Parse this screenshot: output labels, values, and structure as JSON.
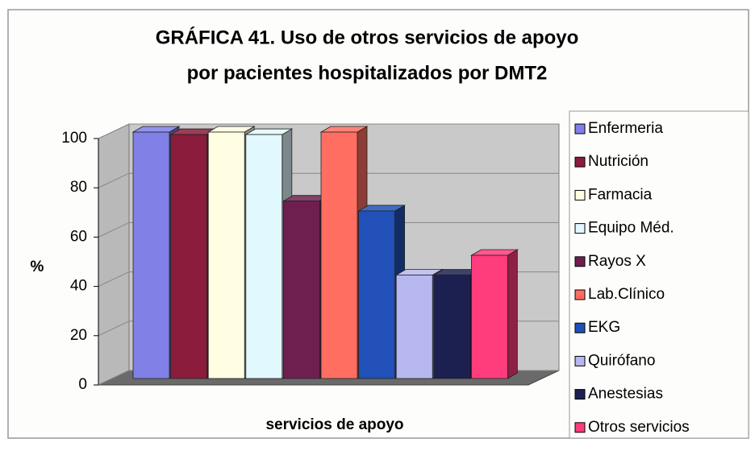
{
  "chart_data": {
    "type": "bar",
    "title": [
      "GRÁFICA 41. Uso de otros servicios  de apoyo",
      "por pacientes hospitalizados por DMT2"
    ],
    "ylabel": "%",
    "xlabel": "servicios de apoyo",
    "ylim": [
      0,
      100
    ],
    "yticks": [
      0,
      20,
      40,
      60,
      80,
      100
    ],
    "grid": true,
    "legend": "right",
    "series": [
      {
        "name": "Enfermeria",
        "color": "#8080e6",
        "values": [
          100
        ]
      },
      {
        "name": "Nutrición",
        "color": "#8c1c3c",
        "values": [
          99
        ]
      },
      {
        "name": "Farmacia",
        "color": "#fffde2",
        "values": [
          100
        ]
      },
      {
        "name": "Equipo Méd.",
        "color": "#e2f8ff",
        "values": [
          99
        ]
      },
      {
        "name": "Rayos X",
        "color": "#6e1f50",
        "values": [
          72
        ]
      },
      {
        "name": "Lab.Clínico",
        "color": "#ff6e60",
        "values": [
          100
        ]
      },
      {
        "name": "EKG",
        "color": "#2050b8",
        "values": [
          68
        ]
      },
      {
        "name": "Quirófano",
        "color": "#b8b8f0",
        "values": [
          42
        ]
      },
      {
        "name": "Anestesias",
        "color": "#1c2050",
        "values": [
          42
        ]
      },
      {
        "name": "Otros servicios",
        "color": "#ff3c7c",
        "values": [
          50
        ]
      }
    ]
  }
}
